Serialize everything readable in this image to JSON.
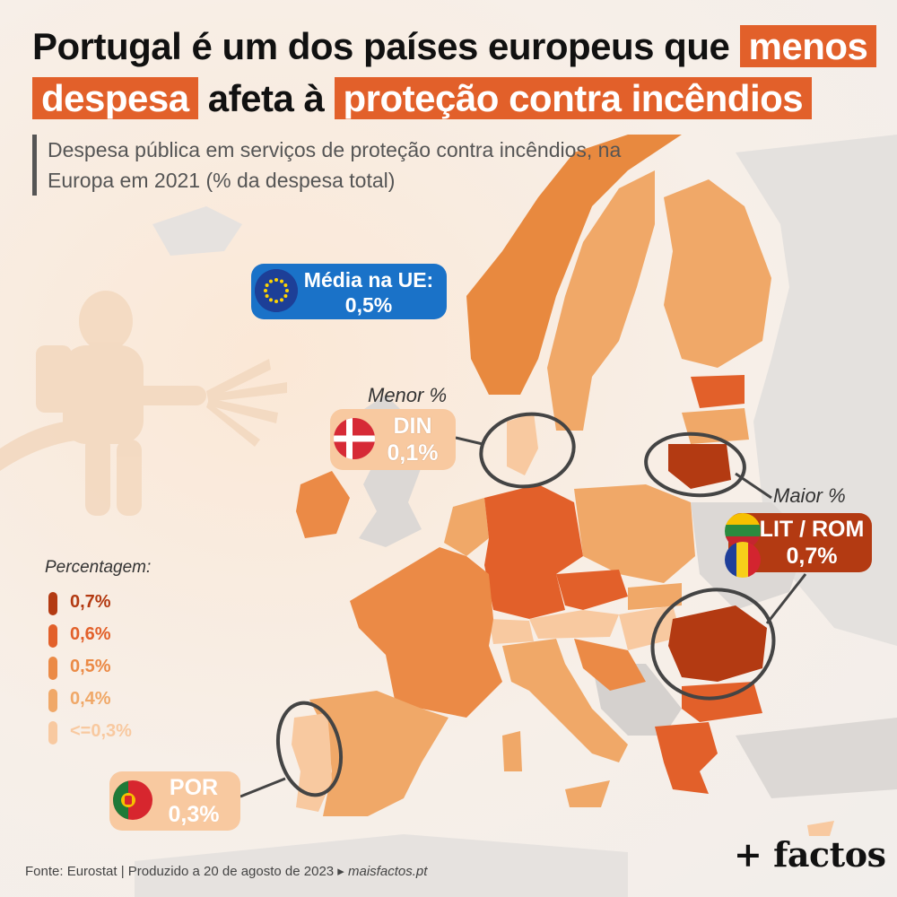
{
  "title": {
    "line1_plain": "Portugal é um dos países europeus que",
    "line1_highlight": "menos",
    "line2_highlight_a": "despesa",
    "line2_plain": "afeta à",
    "line2_highlight_b": "proteção contra incêndios"
  },
  "subtitle": "Despesa pública em serviços de proteção contra incêndios, na Europa em 2021 (% da despesa total)",
  "eu_average": {
    "label": "Média na UE:",
    "value": "0,5%"
  },
  "lowest": {
    "heading": "Menor %",
    "country": "DIN",
    "value": "0,1%"
  },
  "highest": {
    "heading": "Maior %",
    "country": "LIT / ROM",
    "value": "0,7%"
  },
  "portugal": {
    "country": "POR",
    "value": "0,3%"
  },
  "legend": {
    "title": "Percentagem:",
    "items": [
      {
        "label": "0,7%",
        "color": "#b33a12"
      },
      {
        "label": "0,6%",
        "color": "#e2602a"
      },
      {
        "label": "0,5%",
        "color": "#eb8a46"
      },
      {
        "label": "0,4%",
        "color": "#f0a868"
      },
      {
        "label": "<=0,3%",
        "color": "#f8c9a0"
      }
    ]
  },
  "source": {
    "text": "Fonte: Eurostat | Produzido a 20 de agosto de 2023 ▸",
    "site": "maisfactos.pt"
  },
  "logo": "+ factos",
  "colors": {
    "accent": "#e2602a",
    "eu_blue": "#1a72c8",
    "non_eu": "#d9d6d3",
    "sea": "#f4ece4"
  },
  "icons": [
    "firefighter-icon",
    "eu-flag-icon",
    "denmark-flag-icon",
    "lithuania-flag-icon",
    "romania-flag-icon",
    "portugal-flag-icon"
  ]
}
